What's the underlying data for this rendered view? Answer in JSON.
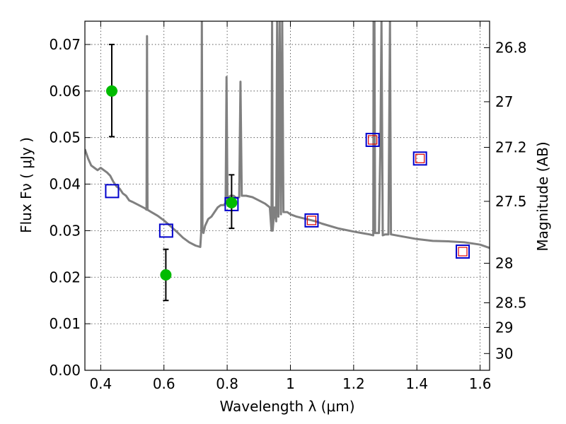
{
  "chart_data": {
    "type": "scatter",
    "xlabel": "Wavelength  λ (μm)",
    "ylabel": "Flux  Fν  ( μJy )",
    "ylabel_right": "Magnitude (AB)",
    "xlim": [
      0.35,
      1.63
    ],
    "ylim": [
      0.0,
      0.075
    ],
    "grid": true,
    "x_ticks": [
      0.4,
      0.6,
      0.8,
      1.0,
      1.2,
      1.4,
      1.6
    ],
    "x_tick_labels": [
      "0.4",
      "0.6",
      "0.8",
      "1",
      "1.2",
      "1.4",
      "1.6"
    ],
    "y_ticks": [
      0.0,
      0.01,
      0.02,
      0.03,
      0.04,
      0.05,
      0.06,
      0.07
    ],
    "y_tick_labels": [
      "0.00",
      "0.01",
      "0.02",
      "0.03",
      "0.04",
      "0.05",
      "0.06",
      "0.07"
    ],
    "right_ticks": [
      {
        "flux": 0.0693,
        "label": "26.8"
      },
      {
        "flux": 0.0577,
        "label": "27"
      },
      {
        "flux": 0.0479,
        "label": "27.2"
      },
      {
        "flux": 0.0363,
        "label": "27.5"
      },
      {
        "flux": 0.023,
        "label": "28"
      },
      {
        "flux": 0.0145,
        "label": "28.5"
      },
      {
        "flux": 0.0092,
        "label": "29"
      },
      {
        "flux": 0.0036,
        "label": "30"
      }
    ],
    "series": [
      {
        "kind": "line",
        "color": "#808080",
        "points": [
          [
            0.35,
            0.0475
          ],
          [
            0.36,
            0.0455
          ],
          [
            0.37,
            0.044
          ],
          [
            0.38,
            0.0435
          ],
          [
            0.39,
            0.043
          ],
          [
            0.4,
            0.0435
          ],
          [
            0.41,
            0.043
          ],
          [
            0.42,
            0.0425
          ],
          [
            0.43,
            0.0418
          ],
          [
            0.44,
            0.0405
          ],
          [
            0.45,
            0.0395
          ],
          [
            0.46,
            0.039
          ],
          [
            0.47,
            0.038
          ],
          [
            0.48,
            0.0375
          ],
          [
            0.49,
            0.0365
          ],
          [
            0.5,
            0.0362
          ],
          [
            0.52,
            0.0355
          ],
          [
            0.54,
            0.0348
          ],
          [
            0.545,
            0.0345
          ],
          [
            0.5465,
            0.0718
          ],
          [
            0.548,
            0.0345
          ],
          [
            0.56,
            0.034
          ],
          [
            0.58,
            0.0332
          ],
          [
            0.6,
            0.0322
          ],
          [
            0.62,
            0.031
          ],
          [
            0.64,
            0.0298
          ],
          [
            0.66,
            0.0285
          ],
          [
            0.68,
            0.0275
          ],
          [
            0.7,
            0.0268
          ],
          [
            0.715,
            0.0265
          ],
          [
            0.718,
            0.03
          ],
          [
            0.72,
            0.075
          ],
          [
            0.722,
            0.03
          ],
          [
            0.725,
            0.0295
          ],
          [
            0.73,
            0.031
          ],
          [
            0.74,
            0.0325
          ],
          [
            0.75,
            0.033
          ],
          [
            0.76,
            0.034
          ],
          [
            0.77,
            0.035
          ],
          [
            0.78,
            0.0355
          ],
          [
            0.79,
            0.0355
          ],
          [
            0.795,
            0.036
          ],
          [
            0.798,
            0.063
          ],
          [
            0.801,
            0.037
          ],
          [
            0.81,
            0.0375
          ],
          [
            0.82,
            0.0375
          ],
          [
            0.83,
            0.037
          ],
          [
            0.838,
            0.0372
          ],
          [
            0.842,
            0.062
          ],
          [
            0.846,
            0.0375
          ],
          [
            0.86,
            0.0375
          ],
          [
            0.88,
            0.0372
          ],
          [
            0.9,
            0.0365
          ],
          [
            0.92,
            0.0358
          ],
          [
            0.935,
            0.035
          ],
          [
            0.94,
            0.03
          ],
          [
            0.942,
            0.075
          ],
          [
            0.944,
            0.03
          ],
          [
            0.95,
            0.035
          ],
          [
            0.955,
            0.032
          ],
          [
            0.958,
            0.075
          ],
          [
            0.962,
            0.033
          ],
          [
            0.966,
            0.075
          ],
          [
            0.97,
            0.0335
          ],
          [
            0.974,
            0.075
          ],
          [
            0.978,
            0.034
          ],
          [
            0.99,
            0.034
          ],
          [
            1.0,
            0.0335
          ],
          [
            1.02,
            0.033
          ],
          [
            1.05,
            0.0325
          ],
          [
            1.08,
            0.032
          ],
          [
            1.1,
            0.0315
          ],
          [
            1.15,
            0.0305
          ],
          [
            1.2,
            0.0298
          ],
          [
            1.25,
            0.0292
          ],
          [
            1.262,
            0.029
          ],
          [
            1.263,
            0.075
          ],
          [
            1.266,
            0.075
          ],
          [
            1.268,
            0.0295
          ],
          [
            1.28,
            0.0295
          ],
          [
            1.285,
            0.05
          ],
          [
            1.288,
            0.075
          ],
          [
            1.292,
            0.029
          ],
          [
            1.3,
            0.0292
          ],
          [
            1.31,
            0.0292
          ],
          [
            1.315,
            0.075
          ],
          [
            1.318,
            0.0292
          ],
          [
            1.35,
            0.0288
          ],
          [
            1.4,
            0.0282
          ],
          [
            1.45,
            0.0278
          ],
          [
            1.5,
            0.0277
          ],
          [
            1.55,
            0.0275
          ],
          [
            1.58,
            0.0272
          ],
          [
            1.6,
            0.027
          ],
          [
            1.63,
            0.0263
          ]
        ]
      },
      {
        "kind": "open-square",
        "color": "#0000cc",
        "points": [
          [
            0.436,
            0.0385
          ],
          [
            0.607,
            0.03
          ],
          [
            0.814,
            0.0357
          ],
          [
            1.067,
            0.0322
          ],
          [
            1.26,
            0.0495
          ],
          [
            1.41,
            0.0455
          ],
          [
            1.545,
            0.0255
          ]
        ]
      },
      {
        "kind": "small-square",
        "color": "#dd0000",
        "points": [
          [
            1.067,
            0.0322
          ],
          [
            1.26,
            0.0495
          ],
          [
            1.41,
            0.0455
          ],
          [
            1.545,
            0.0255
          ]
        ]
      },
      {
        "kind": "filled-circle",
        "color": "#00bb00",
        "points": [
          [
            0.435,
            0.06
          ],
          [
            0.606,
            0.0205
          ],
          [
            0.814,
            0.036
          ]
        ],
        "errors": [
          [
            0.0502,
            0.07
          ],
          [
            0.015,
            0.026
          ],
          [
            0.0305,
            0.042
          ]
        ]
      }
    ]
  }
}
